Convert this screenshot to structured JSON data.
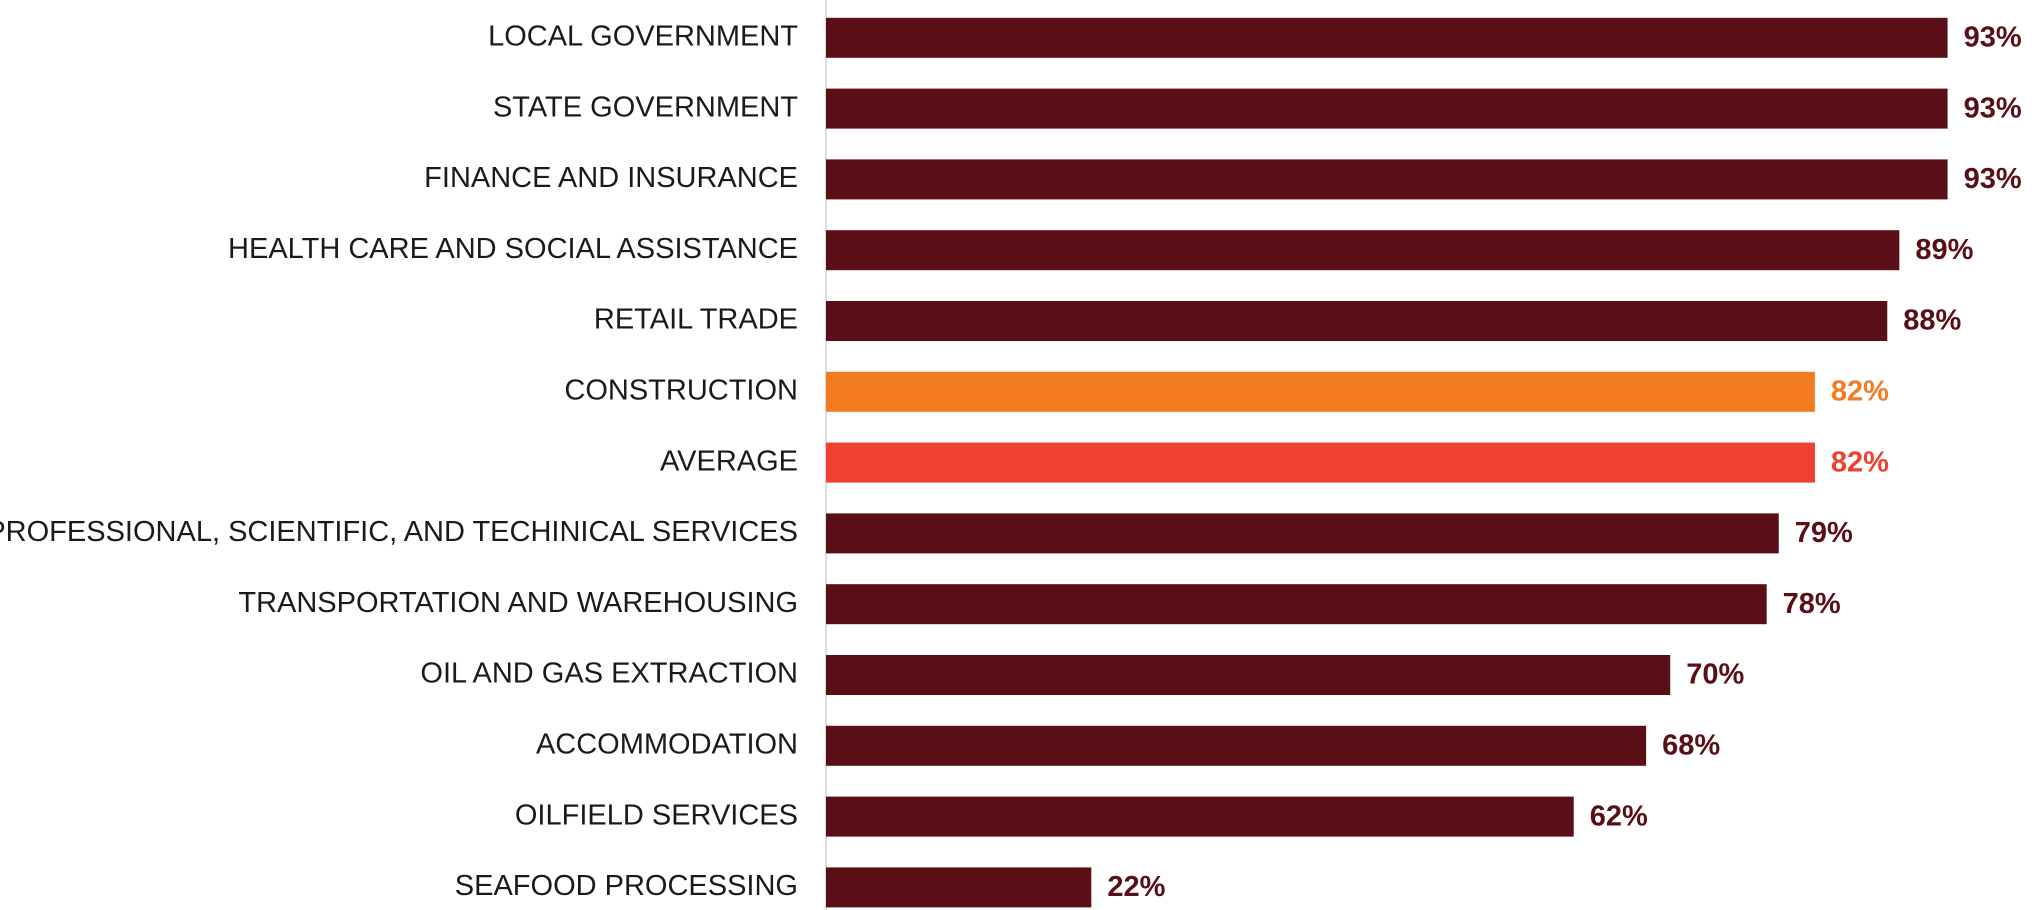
{
  "chart_data": {
    "type": "barh",
    "categories": [
      "LOCAL GOVERNMENT",
      "STATE GOVERNMENT",
      "FINANCE AND INSURANCE",
      "HEALTH CARE AND SOCIAL ASSISTANCE",
      "RETAIL TRADE",
      "CONSTRUCTION",
      "AVERAGE",
      "PROFESSIONAL, SCIENTIFIC, AND TECHINICAL SERVICES",
      "TRANSPORTATION AND WAREHOUSING",
      "OIL AND GAS EXTRACTION",
      "ACCOMMODATION",
      "OILFIELD SERVICES",
      "SEAFOOD PROCESSING"
    ],
    "values": [
      93,
      93,
      93,
      89,
      88,
      82,
      82,
      79,
      78,
      70,
      68,
      62,
      22
    ],
    "value_labels": [
      "93%",
      "93%",
      "93%",
      "89%",
      "88%",
      "82%",
      "82%",
      "79%",
      "78%",
      "70%",
      "68%",
      "62%",
      "22%"
    ],
    "colors": [
      "#5a0e15",
      "#5a0e15",
      "#5a0e15",
      "#5a0e15",
      "#5a0e15",
      "#f47c20",
      "#ef4131",
      "#5a0e15",
      "#5a0e15",
      "#5a0e15",
      "#5a0e15",
      "#5a0e15",
      "#5a0e15"
    ],
    "xlim": [
      0,
      100
    ]
  }
}
